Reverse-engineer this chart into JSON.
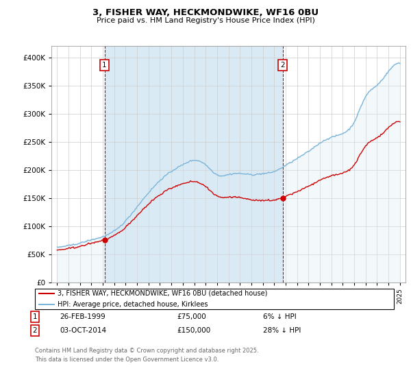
{
  "title": "3, FISHER WAY, HECKMONDWIKE, WF16 0BU",
  "subtitle": "Price paid vs. HM Land Registry's House Price Index (HPI)",
  "legend_line1": "3, FISHER WAY, HECKMONDWIKE, WF16 0BU (detached house)",
  "legend_line2": "HPI: Average price, detached house, Kirklees",
  "sale1_date": "26-FEB-1999",
  "sale1_price": 75000,
  "sale1_label": "6% ↓ HPI",
  "sale1_x": 1999.15,
  "sale2_date": "03-OCT-2014",
  "sale2_price": 150000,
  "sale2_label": "28% ↓ HPI",
  "sale2_x": 2014.75,
  "footnote1": "Contains HM Land Registry data © Crown copyright and database right 2025.",
  "footnote2": "This data is licensed under the Open Government Licence v3.0.",
  "hpi_color": "#7ab4d8",
  "hpi_fill_color": "#daeaf5",
  "price_color": "#cc0000",
  "vline_color": "#cc0000",
  "marker_box_color": "#cc0000",
  "ylim": [
    0,
    420000
  ],
  "xlim": [
    1994.5,
    2025.5
  ],
  "yticks": [
    0,
    50000,
    100000,
    150000,
    200000,
    250000,
    300000,
    350000,
    400000
  ],
  "xticks": [
    1995,
    1996,
    1997,
    1998,
    1999,
    2000,
    2001,
    2002,
    2003,
    2004,
    2005,
    2006,
    2007,
    2008,
    2009,
    2010,
    2011,
    2012,
    2013,
    2014,
    2015,
    2016,
    2017,
    2018,
    2019,
    2020,
    2021,
    2022,
    2023,
    2024,
    2025
  ]
}
